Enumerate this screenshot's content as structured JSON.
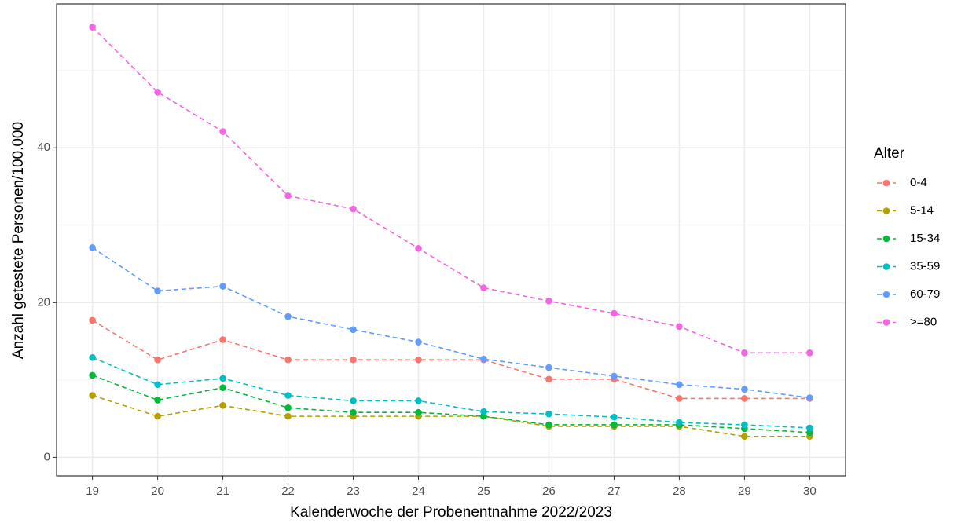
{
  "chart_data": {
    "type": "line",
    "x_label": "Kalenderwoche der Probenentnahme 2022/2023",
    "y_label": "Anzahl getestete Personen/100.000",
    "legend_title": "Alter",
    "legend_position": "right",
    "grid": true,
    "x": [
      19,
      20,
      21,
      22,
      23,
      24,
      25,
      26,
      27,
      28,
      29,
      30
    ],
    "xlim": [
      18.45,
      30.55
    ],
    "xticks": [
      19,
      20,
      21,
      22,
      23,
      24,
      25,
      26,
      27,
      28,
      29,
      30
    ],
    "ylim": [
      -2.4,
      58.6
    ],
    "yticks": [
      0,
      20,
      40
    ],
    "y_minor_ticks": [
      10,
      30,
      50
    ],
    "series": [
      {
        "name": "0-4",
        "color": "#F8766D",
        "values": [
          17.7,
          12.6,
          15.2,
          12.6,
          12.6,
          12.6,
          12.6,
          10.1,
          10.1,
          7.6,
          7.6,
          7.6
        ]
      },
      {
        "name": "5-14",
        "color": "#B79F00",
        "values": [
          8.0,
          5.3,
          6.7,
          5.3,
          5.3,
          5.3,
          5.3,
          4.0,
          4.0,
          4.0,
          2.7,
          2.7
        ]
      },
      {
        "name": "15-34",
        "color": "#00BA38",
        "values": [
          10.6,
          7.4,
          9.0,
          6.4,
          5.8,
          5.8,
          5.3,
          4.2,
          4.2,
          4.2,
          3.7,
          3.2
        ]
      },
      {
        "name": "35-59",
        "color": "#00BFC4",
        "values": [
          12.9,
          9.4,
          10.2,
          8.0,
          7.3,
          7.3,
          5.9,
          5.6,
          5.2,
          4.5,
          4.2,
          3.8
        ]
      },
      {
        "name": "60-79",
        "color": "#619CFF",
        "values": [
          27.1,
          21.5,
          22.1,
          18.2,
          16.5,
          14.9,
          12.7,
          11.6,
          10.5,
          9.4,
          8.8,
          7.7
        ]
      },
      {
        "name": ">=80",
        "color": "#F564E3",
        "values": [
          55.6,
          47.2,
          42.1,
          33.8,
          32.1,
          27.0,
          21.9,
          20.2,
          18.6,
          16.9,
          13.5,
          13.5
        ]
      }
    ]
  }
}
